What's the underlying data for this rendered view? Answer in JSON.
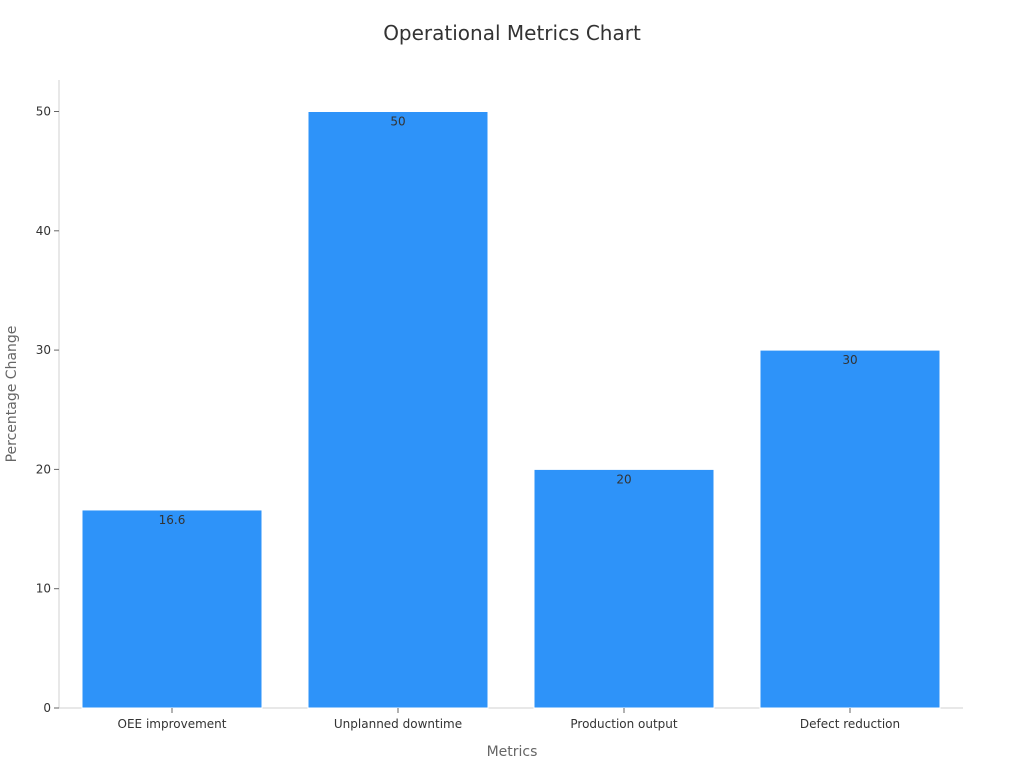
{
  "chart_data": {
    "type": "bar",
    "title": "Operational Metrics Chart",
    "xlabel": "Metrics",
    "ylabel": "Percentage Change",
    "categories": [
      "OEE improvement",
      "Unplanned downtime",
      "Production output",
      "Defect reduction"
    ],
    "values": [
      16.6,
      50,
      20,
      30
    ],
    "data_labels": [
      "16.6",
      "50",
      "20",
      "30"
    ],
    "ylim": [
      0,
      52.5
    ],
    "yticks": [
      0,
      10,
      20,
      30,
      40,
      50
    ],
    "grid": false,
    "legend": "none",
    "colors": {
      "bar": "#2e93f9"
    }
  }
}
